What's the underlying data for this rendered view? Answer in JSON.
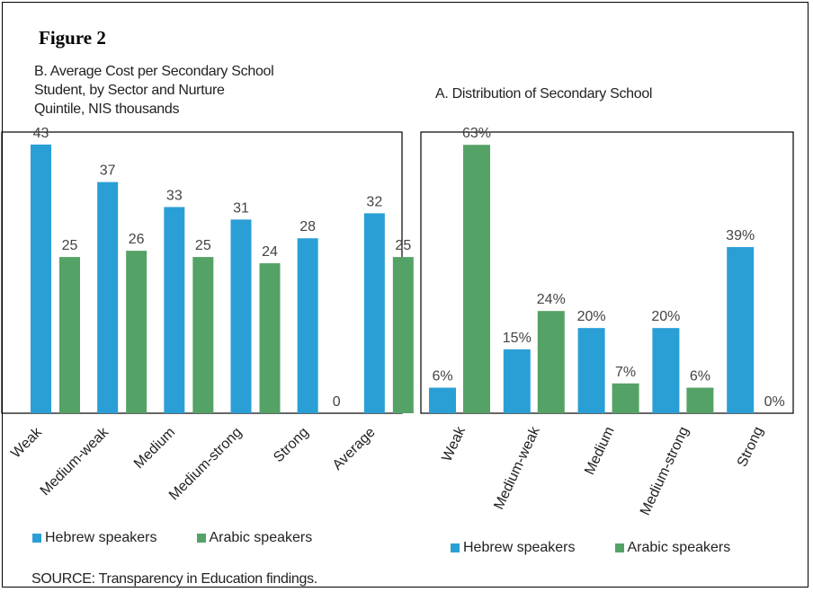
{
  "figure_label": "Figure 2",
  "colors": {
    "hebrew": "#2a9fd6",
    "arabic": "#55a266"
  },
  "legend": {
    "hebrew": "Hebrew speakers",
    "arabic": "Arabic speakers"
  },
  "source": "SOURCE:   Transparency in Education findings.",
  "chart_data": [
    {
      "type": "bar",
      "title": "B. Average Cost per Secondary School\nStudent, by Sector and Nurture\nQuintile, NIS thousands",
      "categories": [
        "Weak",
        "Medium-weak",
        "Medium",
        "Medium-strong",
        "Strong",
        "Average"
      ],
      "series": [
        {
          "name": "Hebrew speakers",
          "values": [
            43,
            37,
            33,
            31,
            28,
            32
          ]
        },
        {
          "name": "Arabic speakers",
          "values": [
            25,
            26,
            25,
            24,
            0,
            25
          ]
        }
      ],
      "ylim": [
        0,
        45
      ],
      "value_suffix": "",
      "grid": false,
      "legend_position": "bottom"
    },
    {
      "type": "bar",
      "title": "A. Distribution of Secondary School",
      "categories": [
        "Weak",
        "Medium-weak",
        "Medium",
        "Medium-strong",
        "Strong"
      ],
      "series": [
        {
          "name": "Hebrew speakers",
          "values": [
            6,
            15,
            20,
            20,
            39
          ]
        },
        {
          "name": "Arabic speakers",
          "values": [
            63,
            24,
            7,
            6,
            0
          ]
        }
      ],
      "ylim": [
        0,
        66
      ],
      "value_suffix": "%",
      "grid": false,
      "legend_position": "bottom"
    }
  ]
}
